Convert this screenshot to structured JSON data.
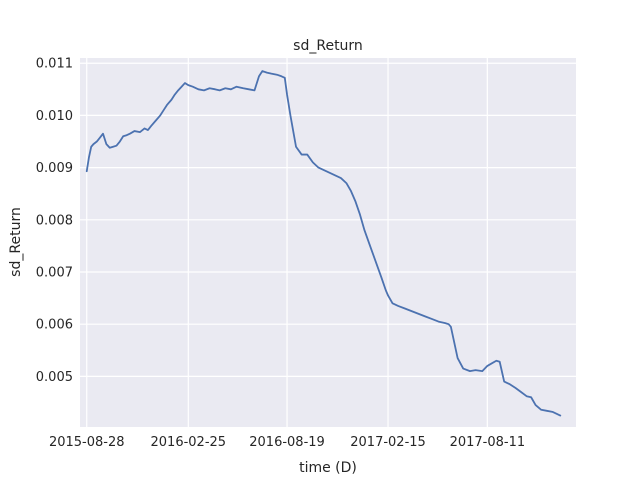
{
  "chart_data": {
    "type": "line",
    "title": "sd_Return",
    "xlabel": "time (D)",
    "ylabel": "sd_Return",
    "x_ticks": [
      "2015-08-28",
      "2016-02-25",
      "2016-08-19",
      "2017-02-15",
      "2017-08-11"
    ],
    "y_ticks": [
      "0.005",
      "0.006",
      "0.007",
      "0.008",
      "0.009",
      "0.010",
      "0.011"
    ],
    "xlim": [
      "2015-08-16",
      "2018-01-16"
    ],
    "ylim": [
      0.00403,
      0.0111
    ],
    "grid": true,
    "legend": "none",
    "colors": {
      "line": "#4c72b0",
      "plot_bg": "#eaeaf2",
      "grid": "#ffffff"
    },
    "series": [
      {
        "x": [
          "2015-08-28",
          "2015-09-01",
          "2015-09-05",
          "2015-09-09",
          "2015-09-15",
          "2015-09-21",
          "2015-09-26",
          "2015-10-02",
          "2015-10-08",
          "2015-10-14",
          "2015-10-20",
          "2015-10-26",
          "2015-11-01",
          "2015-11-07",
          "2015-11-13",
          "2015-11-21",
          "2015-12-01",
          "2015-12-09",
          "2015-12-15",
          "2015-12-21",
          "2015-12-29",
          "2016-01-06",
          "2016-01-12",
          "2016-01-18",
          "2016-01-26",
          "2016-02-01",
          "2016-02-07",
          "2016-02-13",
          "2016-02-19",
          "2016-02-25",
          "2016-03-04",
          "2016-03-14",
          "2016-03-24",
          "2016-04-03",
          "2016-04-13",
          "2016-04-21",
          "2016-05-01",
          "2016-05-11",
          "2016-05-21",
          "2016-06-02",
          "2016-06-12",
          "2016-06-22",
          "2016-06-30",
          "2016-07-06",
          "2016-07-14",
          "2016-07-22",
          "2016-08-01",
          "2016-08-09",
          "2016-08-15",
          "2016-08-19",
          "2016-08-25",
          "2016-09-04",
          "2016-09-14",
          "2016-09-24",
          "2016-10-04",
          "2016-10-14",
          "2016-10-24",
          "2016-11-03",
          "2016-11-13",
          "2016-11-23",
          "2016-12-03",
          "2016-12-11",
          "2016-12-19",
          "2016-12-27",
          "2017-01-04",
          "2017-01-14",
          "2017-01-24",
          "2017-02-03",
          "2017-02-11",
          "2017-02-15",
          "2017-02-23",
          "2017-03-05",
          "2017-03-17",
          "2017-03-29",
          "2017-04-10",
          "2017-04-22",
          "2017-05-04",
          "2017-05-16",
          "2017-05-28",
          "2017-06-03",
          "2017-06-07",
          "2017-06-19",
          "2017-06-29",
          "2017-07-11",
          "2017-07-21",
          "2017-08-02",
          "2017-08-11",
          "2017-08-19",
          "2017-08-27",
          "2017-09-02",
          "2017-09-10",
          "2017-09-20",
          "2017-09-30",
          "2017-10-10",
          "2017-10-20",
          "2017-10-28",
          "2017-11-05",
          "2017-11-15",
          "2017-11-25",
          "2017-12-05",
          "2017-12-13",
          "2017-12-19"
        ],
        "values": [
          0.00893,
          0.0092,
          0.0094,
          0.00945,
          0.0095,
          0.00958,
          0.00965,
          0.00945,
          0.00938,
          0.0094,
          0.00942,
          0.0095,
          0.0096,
          0.00962,
          0.00965,
          0.0097,
          0.00968,
          0.00975,
          0.00972,
          0.0098,
          0.0099,
          0.01,
          0.0101,
          0.0102,
          0.0103,
          0.0104,
          0.01048,
          0.01055,
          0.01062,
          0.01058,
          0.01055,
          0.0105,
          0.01048,
          0.01052,
          0.0105,
          0.01048,
          0.01052,
          0.0105,
          0.01055,
          0.01052,
          0.0105,
          0.01048,
          0.01075,
          0.01085,
          0.01082,
          0.0108,
          0.01078,
          0.01075,
          0.01072,
          0.0104,
          0.01,
          0.0094,
          0.00925,
          0.00925,
          0.0091,
          0.009,
          0.00895,
          0.0089,
          0.00885,
          0.0088,
          0.0087,
          0.00855,
          0.00835,
          0.0081,
          0.0078,
          0.0075,
          0.0072,
          0.0069,
          0.00665,
          0.00655,
          0.0064,
          0.00635,
          0.0063,
          0.00625,
          0.0062,
          0.00615,
          0.0061,
          0.00605,
          0.00602,
          0.006,
          0.00595,
          0.00535,
          0.00515,
          0.0051,
          0.00512,
          0.0051,
          0.0052,
          0.00525,
          0.0053,
          0.00528,
          0.0049,
          0.00485,
          0.00478,
          0.0047,
          0.00462,
          0.0046,
          0.00445,
          0.00436,
          0.00434,
          0.00432,
          0.00428,
          0.00425
        ]
      }
    ]
  }
}
